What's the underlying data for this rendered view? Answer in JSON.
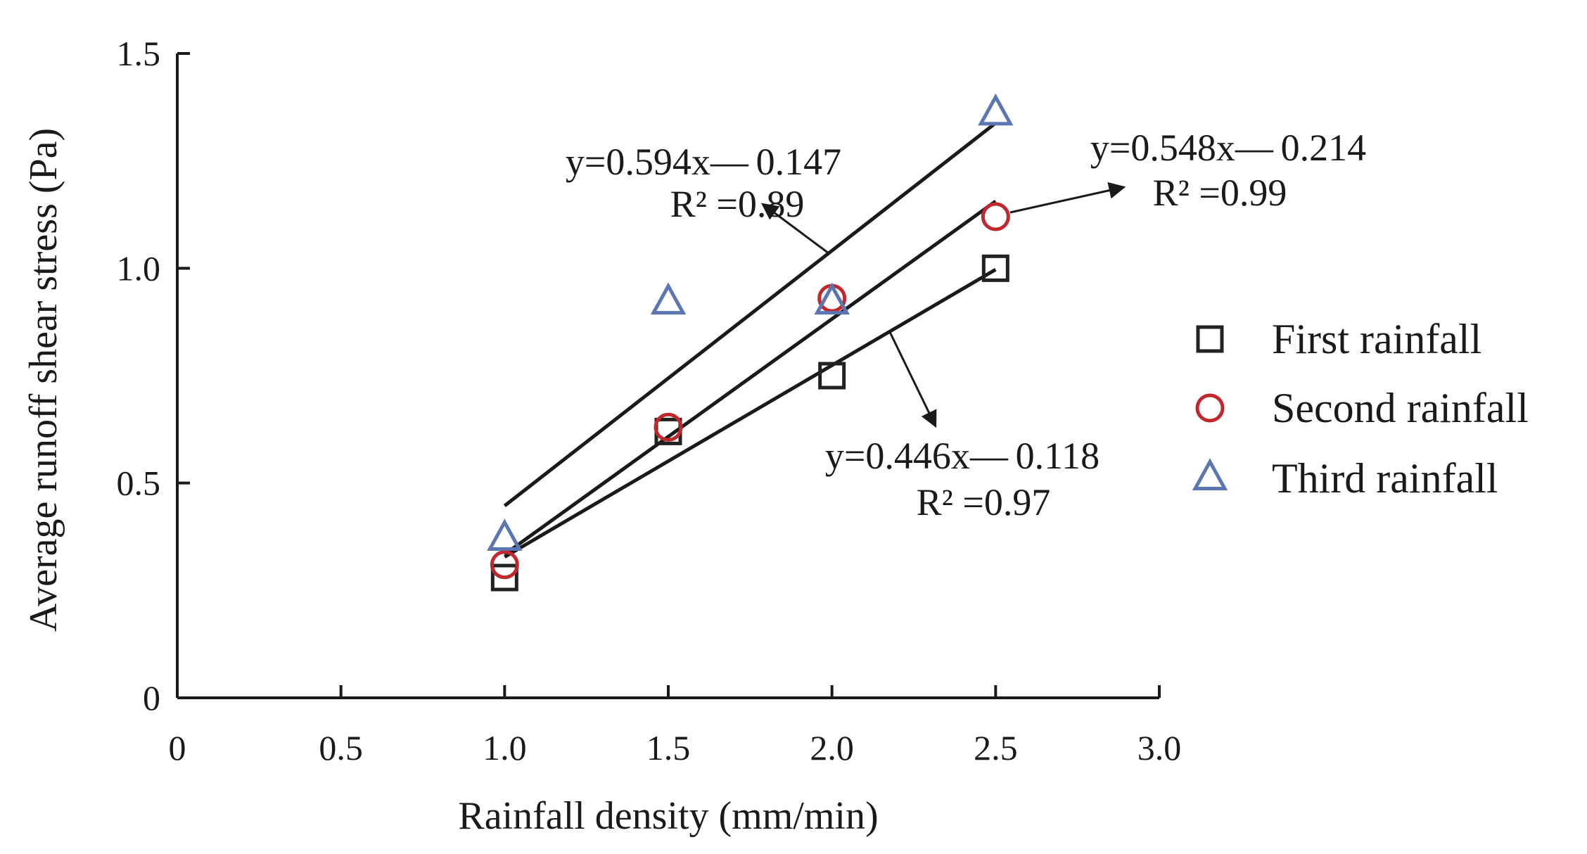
{
  "chart_data": {
    "type": "scatter",
    "title": "",
    "xlabel": "Rainfall density (mm/min)",
    "ylabel": "Average runoff shear stress (Pa)",
    "xlim": [
      0,
      3.0
    ],
    "ylim": [
      0,
      1.5
    ],
    "x_ticks": [
      0,
      0.5,
      1.0,
      1.5,
      2.0,
      2.5,
      3.0
    ],
    "x_tick_labels": [
      "0",
      "0.5",
      "1.0",
      "1.5",
      "2.0",
      "2.5",
      "3.0"
    ],
    "y_ticks": [
      0,
      0.5,
      1.0,
      1.5
    ],
    "y_tick_labels": [
      "0",
      "0.5",
      "1.0",
      "1.5"
    ],
    "grid": false,
    "legend_position": "right",
    "series": [
      {
        "name": "First rainfall",
        "marker": "square",
        "color": "#222222",
        "x": [
          1.0,
          1.5,
          2.0,
          2.5
        ],
        "y": [
          0.28,
          0.62,
          0.75,
          1.0
        ],
        "fit": {
          "slope": 0.446,
          "intercept": -0.118,
          "equation": "y=0.446x— 0.118",
          "r2": "R² =0.97"
        }
      },
      {
        "name": "Second rainfall",
        "marker": "circle",
        "color": "#c0282d",
        "x": [
          1.0,
          1.5,
          2.0,
          2.5
        ],
        "y": [
          0.31,
          0.63,
          0.93,
          1.12
        ],
        "fit": {
          "slope": 0.548,
          "intercept": -0.214,
          "equation": "y=0.548x— 0.214",
          "r2": "R² =0.99"
        }
      },
      {
        "name": "Third rainfall",
        "marker": "triangle",
        "color": "#5b76b0",
        "x": [
          1.0,
          1.5,
          2.0,
          2.5
        ],
        "y": [
          0.37,
          0.92,
          0.92,
          1.36
        ],
        "fit": {
          "slope": 0.594,
          "intercept": -0.147,
          "equation": "y=0.594x— 0.147",
          "r2": "R² =0.89"
        }
      }
    ]
  }
}
